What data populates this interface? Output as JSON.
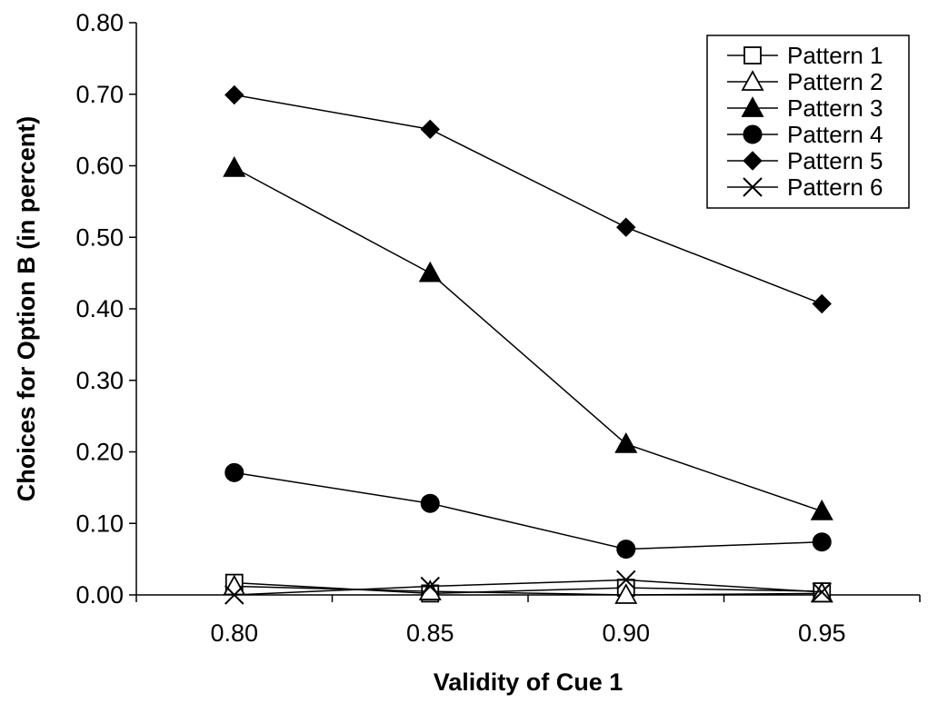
{
  "chart_data": {
    "type": "line",
    "title": "",
    "xlabel": "Validity of Cue 1",
    "ylabel": "Choices for Option B (in percent)",
    "x": [
      0.8,
      0.85,
      0.9,
      0.95
    ],
    "x_tick_labels": [
      "0.80",
      "0.85",
      "0.90",
      "0.95"
    ],
    "xlim": [
      0.775,
      0.975
    ],
    "ylim": [
      0,
      0.8
    ],
    "y_ticks": [
      0,
      0.1,
      0.2,
      0.3,
      0.4,
      0.5,
      0.6,
      0.7,
      0.8
    ],
    "y_tick_labels": [
      "0.00",
      "0.10",
      "0.20",
      "0.30",
      "0.40",
      "0.50",
      "0.60",
      "0.70",
      "0.80"
    ],
    "grid": false,
    "legend_position": "top-right",
    "series": [
      {
        "name": "Pattern 1",
        "marker": "square-open",
        "values": [
          0.017,
          0.002,
          0.01,
          0.005
        ]
      },
      {
        "name": "Pattern 2",
        "marker": "triangle-open",
        "values": [
          0.012,
          0.005,
          0.0,
          0.002
        ]
      },
      {
        "name": "Pattern 3",
        "marker": "triangle-filled",
        "values": [
          0.597,
          0.45,
          0.211,
          0.117
        ]
      },
      {
        "name": "Pattern 4",
        "marker": "circle-filled",
        "values": [
          0.171,
          0.128,
          0.064,
          0.074
        ]
      },
      {
        "name": "Pattern 5",
        "marker": "diamond-filled",
        "values": [
          0.699,
          0.651,
          0.514,
          0.407
        ]
      },
      {
        "name": "Pattern 6",
        "marker": "x",
        "values": [
          0.0,
          0.012,
          0.021,
          0.004
        ]
      }
    ]
  }
}
